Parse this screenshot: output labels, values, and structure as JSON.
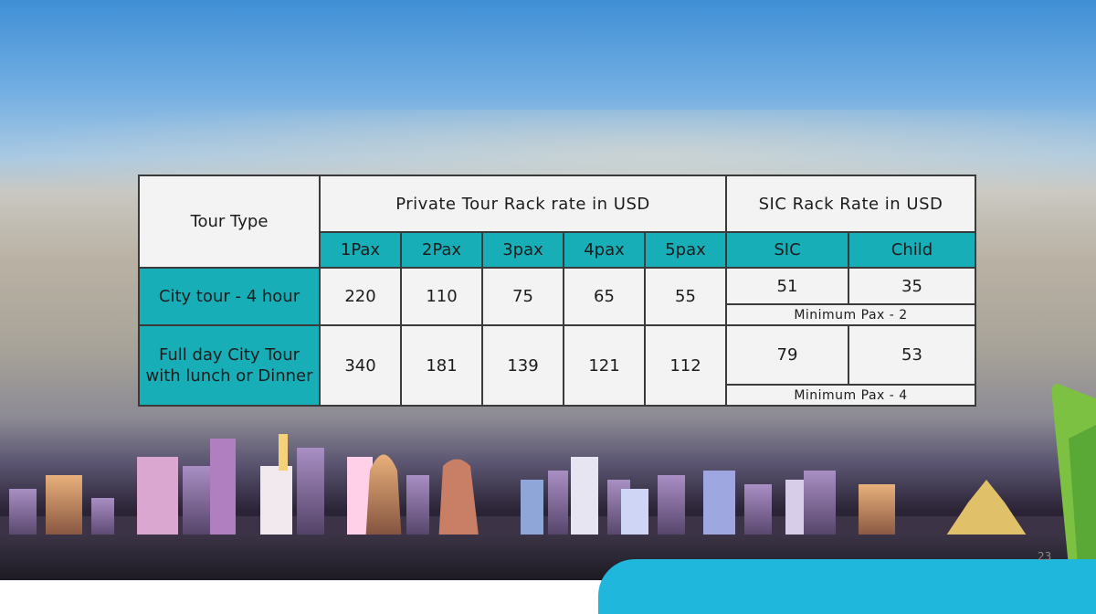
{
  "table": {
    "tour_type_header": "Tour Type",
    "private_header": "Private Tour Rack rate in USD",
    "sic_header": "SIC Rack Rate in USD",
    "pax_headers": [
      "1Pax",
      "2Pax",
      "3pax",
      "4pax",
      "5pax"
    ],
    "sic_sub_headers": [
      "SIC",
      "Child"
    ],
    "rows": [
      {
        "tour": "City tour - 4 hour",
        "prices": [
          "220",
          "110",
          "75",
          "65",
          "55"
        ],
        "sic": "51",
        "child": "35",
        "note": "Minimum Pax - 2"
      },
      {
        "tour": "Full day City Tour with lunch or Dinner",
        "prices": [
          "340",
          "181",
          "139",
          "121",
          "112"
        ],
        "sic": "79",
        "child": "53",
        "note": "Minimum Pax - 4"
      }
    ]
  },
  "page_number": "23",
  "colors": {
    "teal_header": "#17aeb7",
    "cell_bg": "#f3f3f3",
    "accent_cyan": "#20b7dc",
    "accent_green": "#7cc142"
  }
}
